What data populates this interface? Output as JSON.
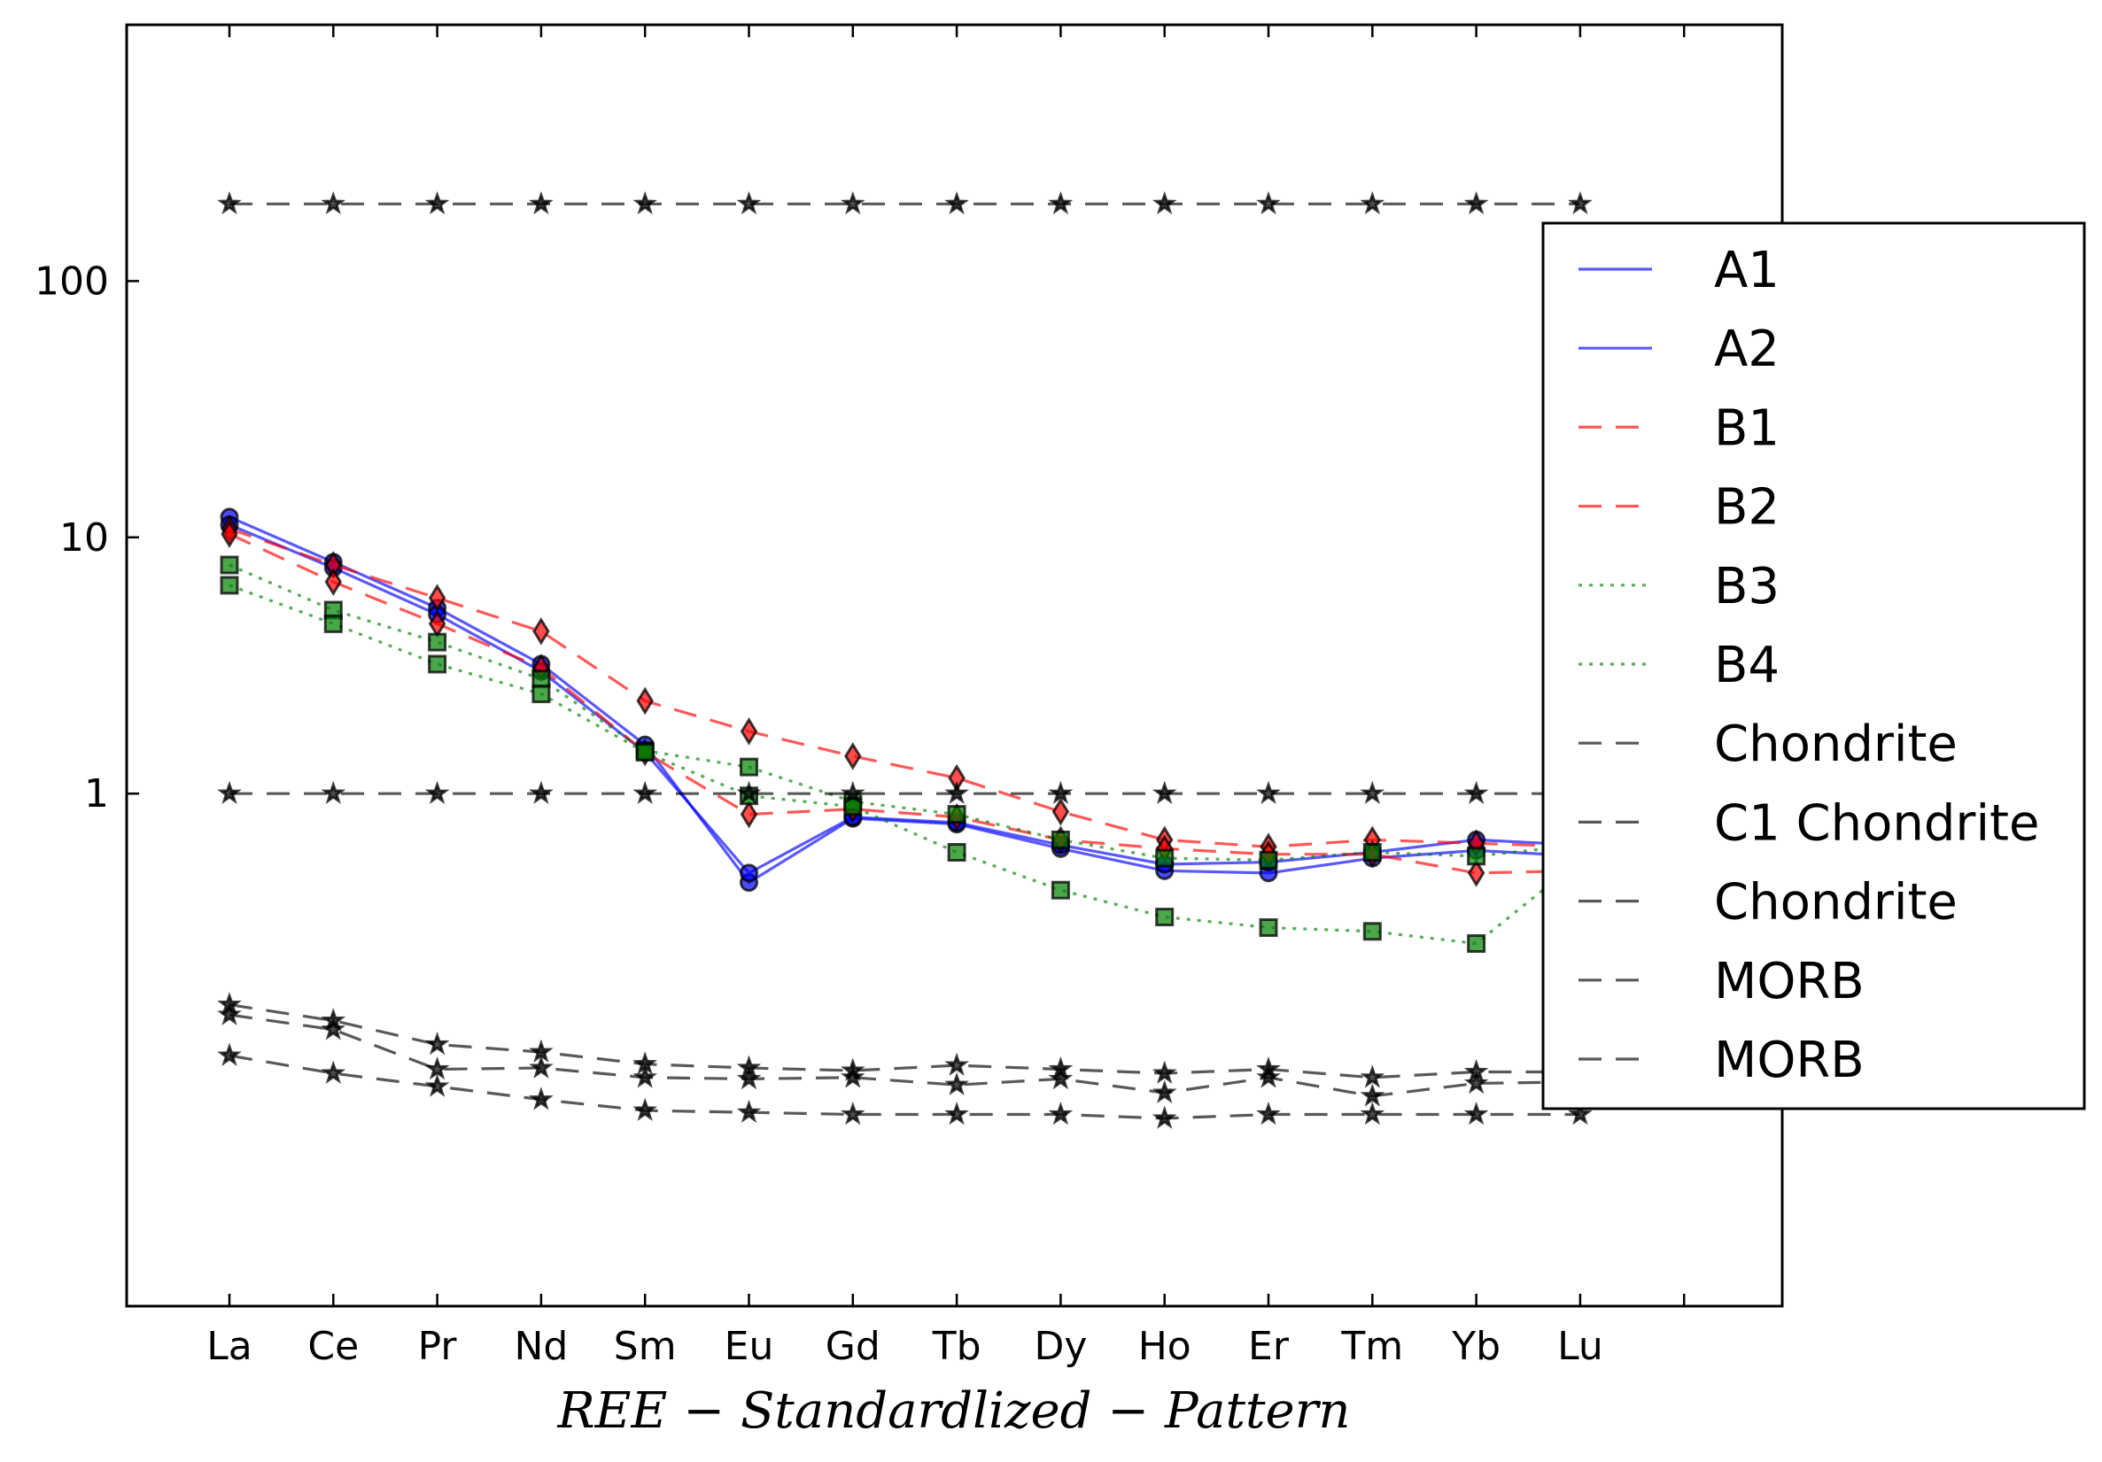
{
  "chart_data": {
    "type": "line",
    "title": "",
    "xlabel": "REE − Standardlized − Pattern",
    "ylabel": "",
    "y_scale": "log",
    "ylim": [
      0.01,
      1000
    ],
    "y_ticks": [
      {
        "value": 100,
        "label": "100"
      },
      {
        "value": 10,
        "label": "10"
      },
      {
        "value": 1,
        "label": "1"
      }
    ],
    "categories": [
      "La",
      "Ce",
      "Pr",
      "Nd",
      "Sm",
      "Eu",
      "Gd",
      "Tb",
      "Dy",
      "Ho",
      "Er",
      "Tm",
      "Yb",
      "Lu"
    ],
    "grid": false,
    "legend_position": "right",
    "series": [
      {
        "name": "A1",
        "color": "#0000ff",
        "style": "solid",
        "marker": "circle",
        "values": [
          12.0,
          8.0,
          5.3,
          3.2,
          1.55,
          0.45,
          0.8,
          0.76,
          0.61,
          0.5,
          0.49,
          0.56,
          0.6,
          0.57
        ]
      },
      {
        "name": "A2",
        "color": "#0000ff",
        "style": "solid",
        "marker": "circle",
        "values": [
          11.2,
          7.6,
          5.0,
          3.0,
          1.45,
          0.49,
          0.81,
          0.77,
          0.63,
          0.53,
          0.54,
          0.59,
          0.66,
          0.63
        ]
      },
      {
        "name": "B1",
        "color": "#ff0000",
        "style": "dashed",
        "marker": "diamond",
        "values": [
          10.8,
          7.8,
          5.8,
          4.3,
          2.3,
          1.75,
          1.4,
          1.15,
          0.85,
          0.66,
          0.62,
          0.66,
          0.64,
          0.62
        ]
      },
      {
        "name": "B2",
        "color": "#ff0000",
        "style": "dashed",
        "marker": "diamond",
        "values": [
          10.3,
          6.7,
          4.6,
          3.1,
          1.45,
          0.83,
          0.87,
          0.81,
          0.66,
          0.61,
          0.58,
          0.58,
          0.49,
          0.5
        ]
      },
      {
        "name": "B3",
        "color": "#008000",
        "style": "dotted",
        "marker": "square",
        "values": [
          7.8,
          5.2,
          3.9,
          2.8,
          1.47,
          1.27,
          0.93,
          0.83,
          0.66,
          0.56,
          0.55,
          0.59,
          0.57,
          0.63
        ]
      },
      {
        "name": "B4",
        "color": "#008000",
        "style": "dotted",
        "marker": "square",
        "values": [
          6.5,
          4.6,
          3.2,
          2.45,
          1.45,
          0.98,
          0.89,
          0.59,
          0.42,
          0.33,
          0.3,
          0.29,
          0.26,
          0.55
        ]
      },
      {
        "name": "Chondrite",
        "color": "#000000",
        "style": "dashed",
        "marker": "star",
        "values": [
          200,
          200,
          200,
          200,
          200,
          200,
          200,
          200,
          200,
          200,
          200,
          200,
          200,
          200
        ]
      },
      {
        "name": "C1 Chondrite",
        "color": "#000000",
        "style": "dashed",
        "marker": "star",
        "values": [
          1,
          1,
          1,
          1,
          1,
          1,
          1,
          1,
          1,
          1,
          1,
          1,
          1,
          1
        ]
      },
      {
        "name": "Chondrite",
        "color": "#000000",
        "style": "dashed",
        "marker": "star",
        "values": [
          0.15,
          0.13,
          0.105,
          0.098,
          0.088,
          0.085,
          0.083,
          0.087,
          0.084,
          0.081,
          0.084,
          0.078,
          0.082,
          0.082
        ]
      },
      {
        "name": "MORB",
        "color": "#000000",
        "style": "dashed",
        "marker": "star",
        "values": [
          0.137,
          0.12,
          0.084,
          0.085,
          0.078,
          0.077,
          0.078,
          0.073,
          0.077,
          0.068,
          0.078,
          0.066,
          0.074,
          0.075
        ]
      },
      {
        "name": "MORB",
        "color": "#000000",
        "style": "dashed",
        "marker": "star",
        "values": [
          0.095,
          0.081,
          0.072,
          0.064,
          0.058,
          0.057,
          0.056,
          0.056,
          0.056,
          0.054,
          0.056,
          0.056,
          0.056,
          0.056
        ]
      }
    ]
  }
}
